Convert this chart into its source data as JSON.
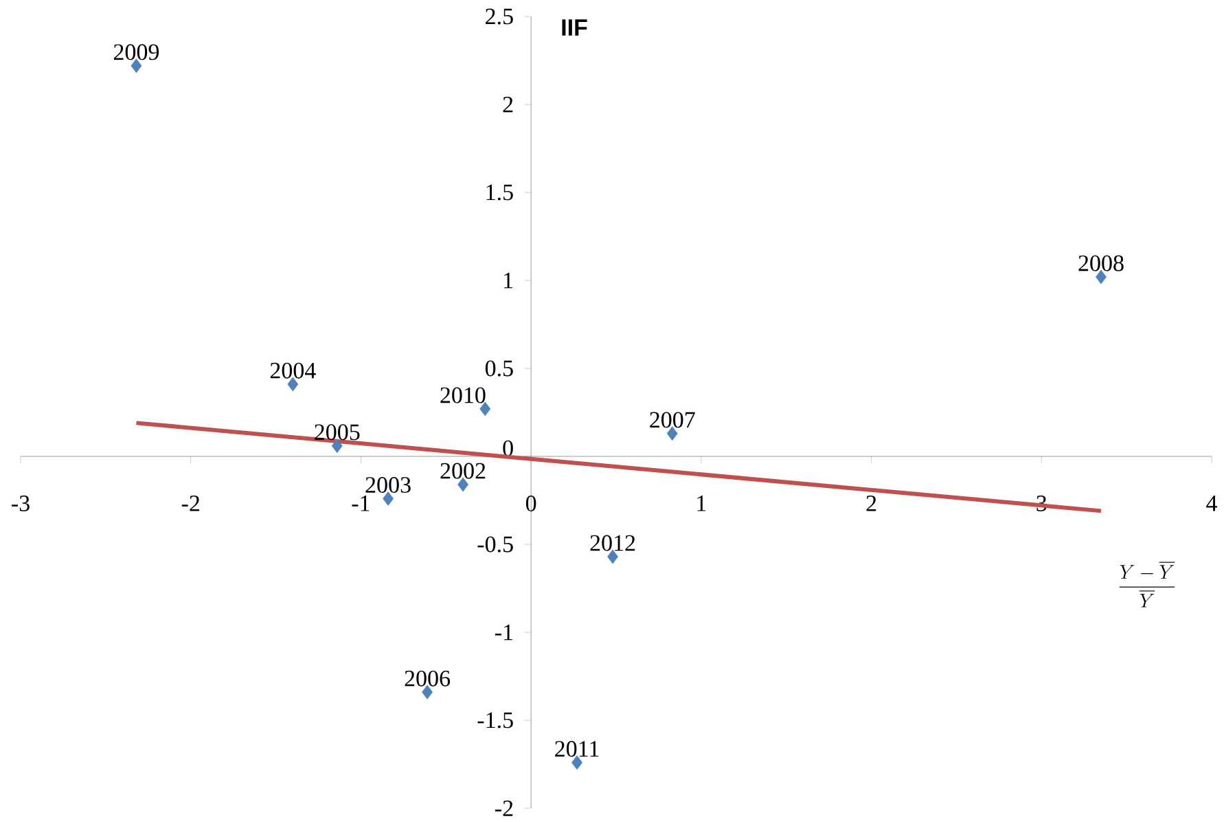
{
  "chart_data": {
    "type": "scatter",
    "xlabel": "\\frac{Y-\\overline{Y}}{\\overline{Y}}",
    "ylabel": "IIF",
    "xlim": [
      -3,
      4
    ],
    "ylim": [
      -2,
      2.5
    ],
    "xticks": [
      -3,
      -2,
      -1,
      0,
      1,
      2,
      3,
      4
    ],
    "yticks": [
      -2,
      -1.5,
      -1,
      -0.5,
      0,
      0.5,
      1,
      1.5,
      2,
      2.5
    ],
    "series": [
      {
        "type": "scatter",
        "marker": "diamond",
        "color": "#4f81bd",
        "x": [
          -0.4,
          -0.84,
          -1.4,
          -1.14,
          -0.61,
          0.83,
          3.35,
          -2.32,
          -0.27,
          0.27,
          0.48
        ],
        "values": [
          -0.16,
          -0.24,
          0.41,
          0.06,
          -1.34,
          0.13,
          1.02,
          2.22,
          0.27,
          -1.74,
          -0.57
        ]
      },
      {
        "type": "line",
        "marker": "none",
        "color": "#c0504d",
        "x": [
          -2.32,
          3.35
        ],
        "values": [
          0.19,
          -0.31
        ]
      }
    ],
    "annotations": [
      {
        "text": "2002",
        "x": -0.4,
        "y": -0.16
      },
      {
        "text": "2003",
        "x": -0.84,
        "y": -0.24
      },
      {
        "text": "2004",
        "x": -1.4,
        "y": 0.41
      },
      {
        "text": "2005",
        "x": -1.14,
        "y": 0.06
      },
      {
        "text": "2006",
        "x": -0.61,
        "y": -1.34
      },
      {
        "text": "2007",
        "x": 0.83,
        "y": 0.13
      },
      {
        "text": "2008",
        "x": 3.35,
        "y": 1.02
      },
      {
        "text": "2009",
        "x": -2.32,
        "y": 2.22
      },
      {
        "text": "2010",
        "x": -0.27,
        "y": 0.27
      },
      {
        "text": "2011",
        "x": 0.27,
        "y": -1.74
      },
      {
        "text": "2012",
        "x": 0.48,
        "y": -0.57
      }
    ]
  }
}
